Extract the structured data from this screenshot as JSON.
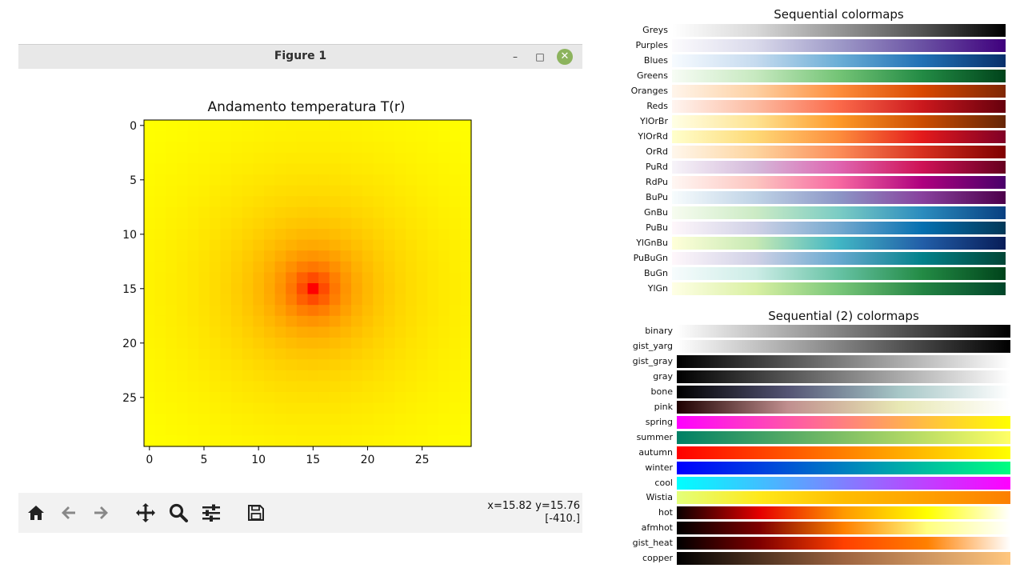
{
  "window": {
    "title": "Figure 1",
    "minimize_label": "–",
    "maximize_label": "□",
    "close_label": "✕",
    "close_color": "#8cb35d"
  },
  "plot": {
    "title": "Andamento temperatura T(r)",
    "colormap": "autumn",
    "x_ticks": [
      "0",
      "5",
      "10",
      "15",
      "20",
      "25"
    ],
    "y_ticks": [
      "0",
      "5",
      "10",
      "15",
      "20",
      "25"
    ]
  },
  "chart_data": {
    "type": "heatmap",
    "title": "Andamento temperatura T(r)",
    "rows": 30,
    "cols": 30,
    "colormap": "autumn",
    "peak_cell": [
      15,
      15
    ],
    "values_description_only": false,
    "xlim": [
      -0.5,
      29.5
    ],
    "ylim": [
      29.5,
      -0.5
    ],
    "x_ticks": [
      0,
      5,
      10,
      15,
      20,
      25
    ],
    "y_ticks": [
      0,
      5,
      10,
      15,
      20,
      25
    ],
    "cursor_value": -410.0
  },
  "toolbar": {
    "items": [
      {
        "name": "home-icon"
      },
      {
        "name": "back-icon"
      },
      {
        "name": "forward-icon"
      },
      {
        "name": "pan-icon"
      },
      {
        "name": "zoom-icon"
      },
      {
        "name": "configure-subplots-icon"
      },
      {
        "name": "save-icon"
      }
    ],
    "coord_line1": "x=15.82 y=15.76",
    "coord_line2": "[-410.]"
  },
  "cmap_groups": [
    {
      "title": "Sequential colormaps",
      "items": [
        {
          "label": "Greys",
          "colors": [
            "#ffffff",
            "#d9d9d9",
            "#969696",
            "#525252",
            "#000000"
          ]
        },
        {
          "label": "Purples",
          "colors": [
            "#fcfbfd",
            "#dadaeb",
            "#9e9ac8",
            "#6a51a3",
            "#3f007d"
          ]
        },
        {
          "label": "Blues",
          "colors": [
            "#f7fbff",
            "#c6dbef",
            "#6baed6",
            "#2171b5",
            "#08306b"
          ]
        },
        {
          "label": "Greens",
          "colors": [
            "#f7fcf5",
            "#c7e9c0",
            "#74c476",
            "#238b45",
            "#00441b"
          ]
        },
        {
          "label": "Oranges",
          "colors": [
            "#fff5eb",
            "#fdd0a2",
            "#fd8d3c",
            "#d94801",
            "#7f2704"
          ]
        },
        {
          "label": "Reds",
          "colors": [
            "#fff5f0",
            "#fcbba1",
            "#fb6a4a",
            "#cb181d",
            "#67000d"
          ]
        },
        {
          "label": "YlOrBr",
          "colors": [
            "#ffffe5",
            "#fee391",
            "#fe9929",
            "#cc4c02",
            "#662506"
          ]
        },
        {
          "label": "YlOrRd",
          "colors": [
            "#ffffcc",
            "#fed976",
            "#fd8d3c",
            "#e31a1c",
            "#800026"
          ]
        },
        {
          "label": "OrRd",
          "colors": [
            "#fff7ec",
            "#fdd49e",
            "#fc8d59",
            "#d7301f",
            "#7f0000"
          ]
        },
        {
          "label": "PuRd",
          "colors": [
            "#f7f4f9",
            "#d4b9da",
            "#df65b0",
            "#ce1256",
            "#67001f"
          ]
        },
        {
          "label": "RdPu",
          "colors": [
            "#fff7f3",
            "#fcc5c0",
            "#f768a1",
            "#ae017e",
            "#49006a"
          ]
        },
        {
          "label": "BuPu",
          "colors": [
            "#f7fcfd",
            "#bfd3e6",
            "#8c96c6",
            "#88419d",
            "#4d004b"
          ]
        },
        {
          "label": "GnBu",
          "colors": [
            "#f7fcf0",
            "#ccebc5",
            "#7bccc4",
            "#2b8cbe",
            "#084081"
          ]
        },
        {
          "label": "PuBu",
          "colors": [
            "#fff7fb",
            "#d0d1e6",
            "#74a9cf",
            "#0570b0",
            "#023858"
          ]
        },
        {
          "label": "YlGnBu",
          "colors": [
            "#ffffd9",
            "#c7e9b4",
            "#41b6c4",
            "#225ea8",
            "#081d58"
          ]
        },
        {
          "label": "PuBuGn",
          "colors": [
            "#fff7fb",
            "#d0d1e6",
            "#67a9cf",
            "#02818a",
            "#014636"
          ]
        },
        {
          "label": "BuGn",
          "colors": [
            "#f7fcfd",
            "#ccece6",
            "#66c2a4",
            "#238b45",
            "#00441b"
          ]
        },
        {
          "label": "YlGn",
          "colors": [
            "#ffffe5",
            "#d9f0a3",
            "#78c679",
            "#238443",
            "#004529"
          ]
        }
      ]
    },
    {
      "title": "Sequential (2) colormaps",
      "items": [
        {
          "label": "binary",
          "colors": [
            "#ffffff",
            "#000000"
          ]
        },
        {
          "label": "gist_yarg",
          "colors": [
            "#ffffff",
            "#000000"
          ]
        },
        {
          "label": "gist_gray",
          "colors": [
            "#000000",
            "#ffffff"
          ]
        },
        {
          "label": "gray",
          "colors": [
            "#000000",
            "#ffffff"
          ]
        },
        {
          "label": "bone",
          "colors": [
            "#000000",
            "#545474",
            "#a7c7c7",
            "#ffffff"
          ]
        },
        {
          "label": "pink",
          "colors": [
            "#1e0000",
            "#c08f8f",
            "#e8e8b4",
            "#ffffff"
          ]
        },
        {
          "label": "spring",
          "colors": [
            "#ff00ff",
            "#ffff00"
          ]
        },
        {
          "label": "summer",
          "colors": [
            "#008066",
            "#ffff66"
          ]
        },
        {
          "label": "autumn",
          "colors": [
            "#ff0000",
            "#ffff00"
          ]
        },
        {
          "label": "winter",
          "colors": [
            "#0000ff",
            "#00ff80"
          ]
        },
        {
          "label": "cool",
          "colors": [
            "#00ffff",
            "#ff00ff"
          ]
        },
        {
          "label": "Wistia",
          "colors": [
            "#e4ff7a",
            "#ffe81a",
            "#ffbd00",
            "#ffa000",
            "#fc7f00"
          ]
        },
        {
          "label": "hot",
          "colors": [
            "#0b0000",
            "#e50000",
            "#ff9900",
            "#ffff00",
            "#ffffff"
          ]
        },
        {
          "label": "afmhot",
          "colors": [
            "#000000",
            "#800000",
            "#ff8000",
            "#ffff80",
            "#ffffff"
          ]
        },
        {
          "label": "gist_heat",
          "colors": [
            "#000000",
            "#800000",
            "#ff4000",
            "#ff8000",
            "#ffffff"
          ]
        },
        {
          "label": "copper",
          "colors": [
            "#000000",
            "#9e6440",
            "#ffc77f"
          ]
        }
      ]
    }
  ]
}
